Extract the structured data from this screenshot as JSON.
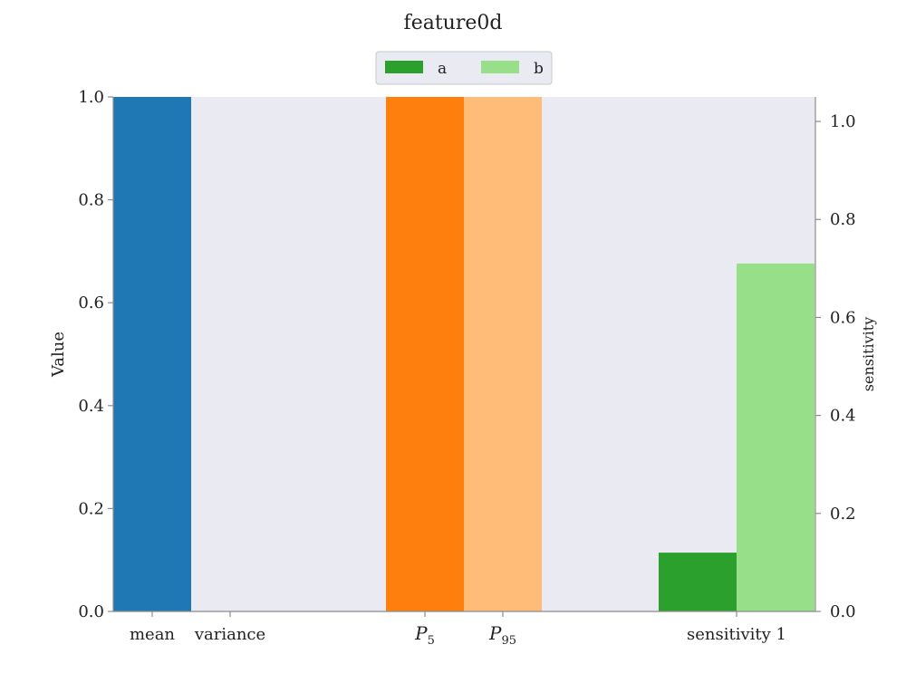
{
  "chart_data": {
    "type": "bar",
    "title": "feature0d",
    "xlabel": "",
    "ylabel": "Value",
    "y2label": "sensitivity",
    "ylim": [
      0,
      1.0
    ],
    "y2lim": [
      0,
      1.05
    ],
    "yticks": [
      "0.0",
      "0.2",
      "0.4",
      "0.6",
      "0.8",
      "1.0"
    ],
    "y2ticks": [
      "0.0",
      "0.2",
      "0.4",
      "0.6",
      "0.8",
      "1.0"
    ],
    "grid": false,
    "legend_placement": "top-center",
    "legend": [
      {
        "label": "a",
        "color": "#2ca02c"
      },
      {
        "label": "b",
        "color": "#98df8a"
      }
    ],
    "categories": [
      {
        "label": "mean",
        "sub": ""
      },
      {
        "label": "variance",
        "sub": ""
      },
      {
        "label": "P",
        "sub": "5"
      },
      {
        "label": "P",
        "sub": "95"
      },
      {
        "label": "sensitivity 1",
        "sub": ""
      }
    ],
    "bars": [
      {
        "category": "mean",
        "value": 1.0,
        "axis": "left",
        "color": "#1f77b4"
      },
      {
        "category": "variance",
        "value": 0.0,
        "axis": "left",
        "color": "#aec7e8"
      },
      {
        "category": "P_5",
        "value": 1.0,
        "axis": "left",
        "color": "#ff7f0e"
      },
      {
        "category": "P_95",
        "value": 1.0,
        "axis": "left",
        "color": "#ffbb78"
      },
      {
        "category": "sensitivity 1",
        "series": "a",
        "value": 0.12,
        "axis": "right",
        "color": "#2ca02c"
      },
      {
        "category": "sensitivity 1",
        "series": "b",
        "value": 0.71,
        "axis": "right",
        "color": "#98df8a"
      }
    ],
    "colors": {
      "plot_background": "#eaeaf2",
      "axis_line": "#8c8c8c"
    }
  }
}
